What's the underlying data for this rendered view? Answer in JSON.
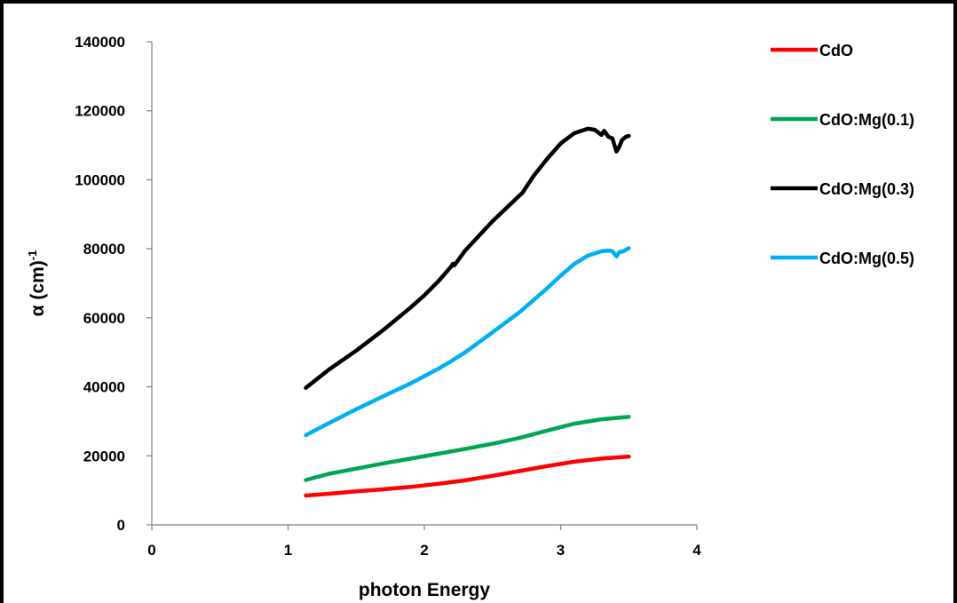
{
  "chart_data": {
    "type": "line",
    "title": "",
    "xlabel": "photon Energy",
    "ylabel_main": "α (cm)",
    "ylabel_sup": "-1",
    "xlim": [
      0,
      4
    ],
    "ylim": [
      0,
      140000
    ],
    "x_ticks": [
      0,
      1,
      2,
      3,
      4
    ],
    "y_ticks": [
      0,
      20000,
      40000,
      60000,
      80000,
      100000,
      120000,
      140000
    ],
    "grid": false,
    "legend_position": "top-right",
    "series": [
      {
        "name": "CdO",
        "color": "#ff0000",
        "points": [
          [
            1.13,
            8500
          ],
          [
            1.3,
            9000
          ],
          [
            1.5,
            9700
          ],
          [
            1.7,
            10300
          ],
          [
            1.9,
            11000
          ],
          [
            2.1,
            11900
          ],
          [
            2.3,
            12900
          ],
          [
            2.5,
            14200
          ],
          [
            2.7,
            15600
          ],
          [
            2.9,
            17000
          ],
          [
            3.1,
            18300
          ],
          [
            3.3,
            19200
          ],
          [
            3.5,
            19800
          ]
        ]
      },
      {
        "name": "CdO:Mg(0.1)",
        "color": "#00a651",
        "points": [
          [
            1.13,
            13000
          ],
          [
            1.3,
            14800
          ],
          [
            1.5,
            16300
          ],
          [
            1.7,
            17800
          ],
          [
            1.9,
            19200
          ],
          [
            2.1,
            20600
          ],
          [
            2.3,
            22000
          ],
          [
            2.5,
            23500
          ],
          [
            2.7,
            25200
          ],
          [
            2.9,
            27300
          ],
          [
            3.1,
            29300
          ],
          [
            3.3,
            30600
          ],
          [
            3.5,
            31300
          ]
        ]
      },
      {
        "name": "CdO:Mg(0.3)",
        "color": "#000000",
        "points": [
          [
            1.13,
            39700
          ],
          [
            1.3,
            45000
          ],
          [
            1.5,
            50500
          ],
          [
            1.7,
            56500
          ],
          [
            1.9,
            63000
          ],
          [
            2.0,
            66500
          ],
          [
            2.1,
            70500
          ],
          [
            2.2,
            75000
          ],
          [
            2.21,
            75700
          ],
          [
            2.22,
            75200
          ],
          [
            2.3,
            79500
          ],
          [
            2.5,
            88000
          ],
          [
            2.7,
            95500
          ],
          [
            2.72,
            96200
          ],
          [
            2.8,
            101000
          ],
          [
            2.9,
            106000
          ],
          [
            3.0,
            110500
          ],
          [
            3.1,
            113500
          ],
          [
            3.2,
            114800
          ],
          [
            3.25,
            114500
          ],
          [
            3.3,
            113000
          ],
          [
            3.32,
            114200
          ],
          [
            3.35,
            112500
          ],
          [
            3.38,
            112000
          ],
          [
            3.41,
            108200
          ],
          [
            3.43,
            109500
          ],
          [
            3.45,
            111500
          ],
          [
            3.48,
            112500
          ],
          [
            3.5,
            112700
          ]
        ]
      },
      {
        "name": "CdO:Mg(0.5)",
        "color": "#00b0f0",
        "points": [
          [
            1.13,
            26000
          ],
          [
            1.3,
            29500
          ],
          [
            1.5,
            33500
          ],
          [
            1.7,
            37300
          ],
          [
            1.9,
            41000
          ],
          [
            2.1,
            45200
          ],
          [
            2.2,
            47500
          ],
          [
            2.3,
            50000
          ],
          [
            2.5,
            55800
          ],
          [
            2.7,
            61700
          ],
          [
            2.9,
            68500
          ],
          [
            3.0,
            72200
          ],
          [
            3.1,
            75600
          ],
          [
            3.2,
            78000
          ],
          [
            3.3,
            79300
          ],
          [
            3.35,
            79500
          ],
          [
            3.38,
            79300
          ],
          [
            3.41,
            77800
          ],
          [
            3.43,
            79000
          ],
          [
            3.46,
            79300
          ],
          [
            3.5,
            80200
          ]
        ]
      }
    ]
  }
}
